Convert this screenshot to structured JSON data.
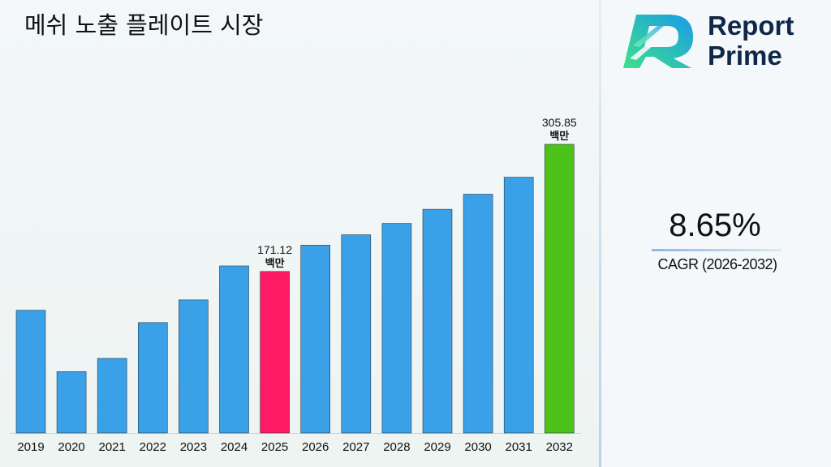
{
  "header": {
    "title": "메쉬 노출 플레이트 시장"
  },
  "logo": {
    "line1": "Report",
    "line2": "Prime",
    "icon": "report-prime-logo-icon"
  },
  "kpi": {
    "value": "8.65%",
    "label": "CAGR (2026-2032)"
  },
  "colors": {
    "bar": "#3aa0e8",
    "highlight_2025": "#ff1a66",
    "highlight_2032": "#4cc21a",
    "brand_dark": "#0f2748"
  },
  "chart_data": {
    "type": "bar",
    "title": "메쉬 노출 플레이트 시장",
    "categories": [
      "2019",
      "2020",
      "2021",
      "2022",
      "2023",
      "2024",
      "2025",
      "2026",
      "2027",
      "2028",
      "2029",
      "2030",
      "2031",
      "2032"
    ],
    "values": [
      130,
      65,
      79,
      117,
      141,
      177,
      171.12,
      199,
      210,
      222,
      237,
      253,
      271,
      305.85
    ],
    "annotations": [
      {
        "category": "2025",
        "value_text": "171.12",
        "unit_text": "백만"
      },
      {
        "category": "2032",
        "value_text": "305.85",
        "unit_text": "백만"
      }
    ],
    "ylim": [
      0,
      305.85
    ],
    "grid": false,
    "legend": "none"
  }
}
